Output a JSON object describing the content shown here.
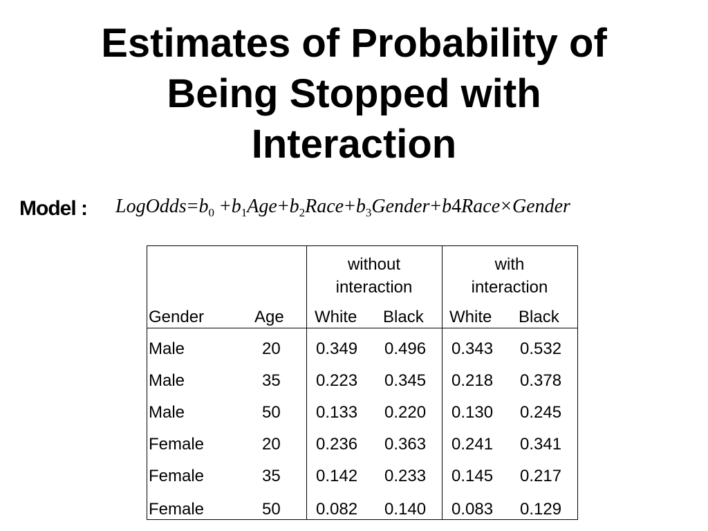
{
  "title_lines": [
    "Estimates of Probability of",
    "Being Stopped with",
    "Interaction"
  ],
  "model_label": "Model :",
  "formula": {
    "lhs": "LogOdds",
    "eq": "=",
    "b0": "b",
    "b0_sub": "0",
    "plus": "+",
    "b1": "b",
    "b1_sub": "1",
    "age": "Age",
    "b2": "b",
    "b2_sub": "2",
    "race": "Race",
    "b3": "b",
    "b3_sub": "3",
    "gender": "Gender",
    "b4": "b",
    "b4_num": "4",
    "race2": "Race",
    "times": "×",
    "gender2": "Gender"
  },
  "table": {
    "group_headers": [
      {
        "line1": "without",
        "line2": "interaction"
      },
      {
        "line1": "with",
        "line2": "interaction"
      }
    ],
    "columns": [
      "Gender",
      "Age",
      "White",
      "Black",
      "White",
      "Black"
    ],
    "rows": [
      [
        "Male",
        "20",
        "0.349",
        "0.496",
        "0.343",
        "0.532"
      ],
      [
        "Male",
        "35",
        "0.223",
        "0.345",
        "0.218",
        "0.378"
      ],
      [
        "Male",
        "50",
        "0.133",
        "0.220",
        "0.130",
        "0.245"
      ],
      [
        "Female",
        "20",
        "0.236",
        "0.363",
        "0.241",
        "0.341"
      ],
      [
        "Female",
        "35",
        "0.142",
        "0.233",
        "0.145",
        "0.217"
      ],
      [
        "Female",
        "50",
        "0.082",
        "0.140",
        "0.083",
        "0.129"
      ]
    ]
  }
}
